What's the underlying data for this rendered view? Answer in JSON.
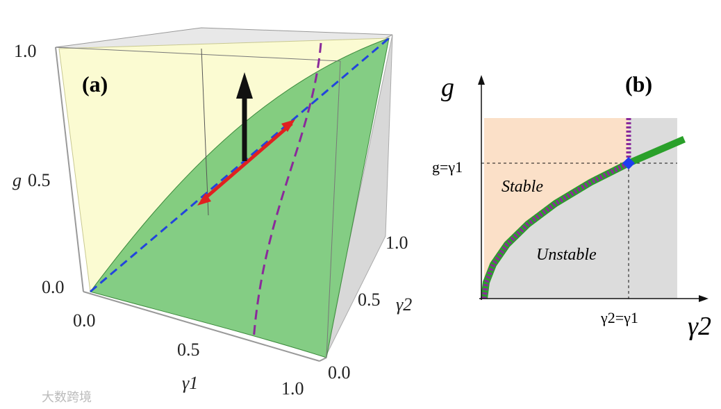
{
  "panel_a": {
    "label": "(a)",
    "g_axis": {
      "title": "g",
      "ticks": [
        "1.0",
        "0.5",
        "0.0"
      ]
    },
    "gamma1_axis": {
      "title": "γ1",
      "ticks": [
        "0.0",
        "0.5",
        "1.0"
      ]
    },
    "gamma2_axis": {
      "title": "γ2",
      "ticks": [
        "1.0",
        "0.5",
        "0.0"
      ]
    }
  },
  "panel_b": {
    "label": "(b)",
    "y_axis_title": "g",
    "x_axis_title": "γ2",
    "g_marker": "g=γ1",
    "gamma_marker": "γ2=γ1",
    "regions": [
      "Stable",
      "Unstable"
    ]
  },
  "watermark": "大数跨境"
}
